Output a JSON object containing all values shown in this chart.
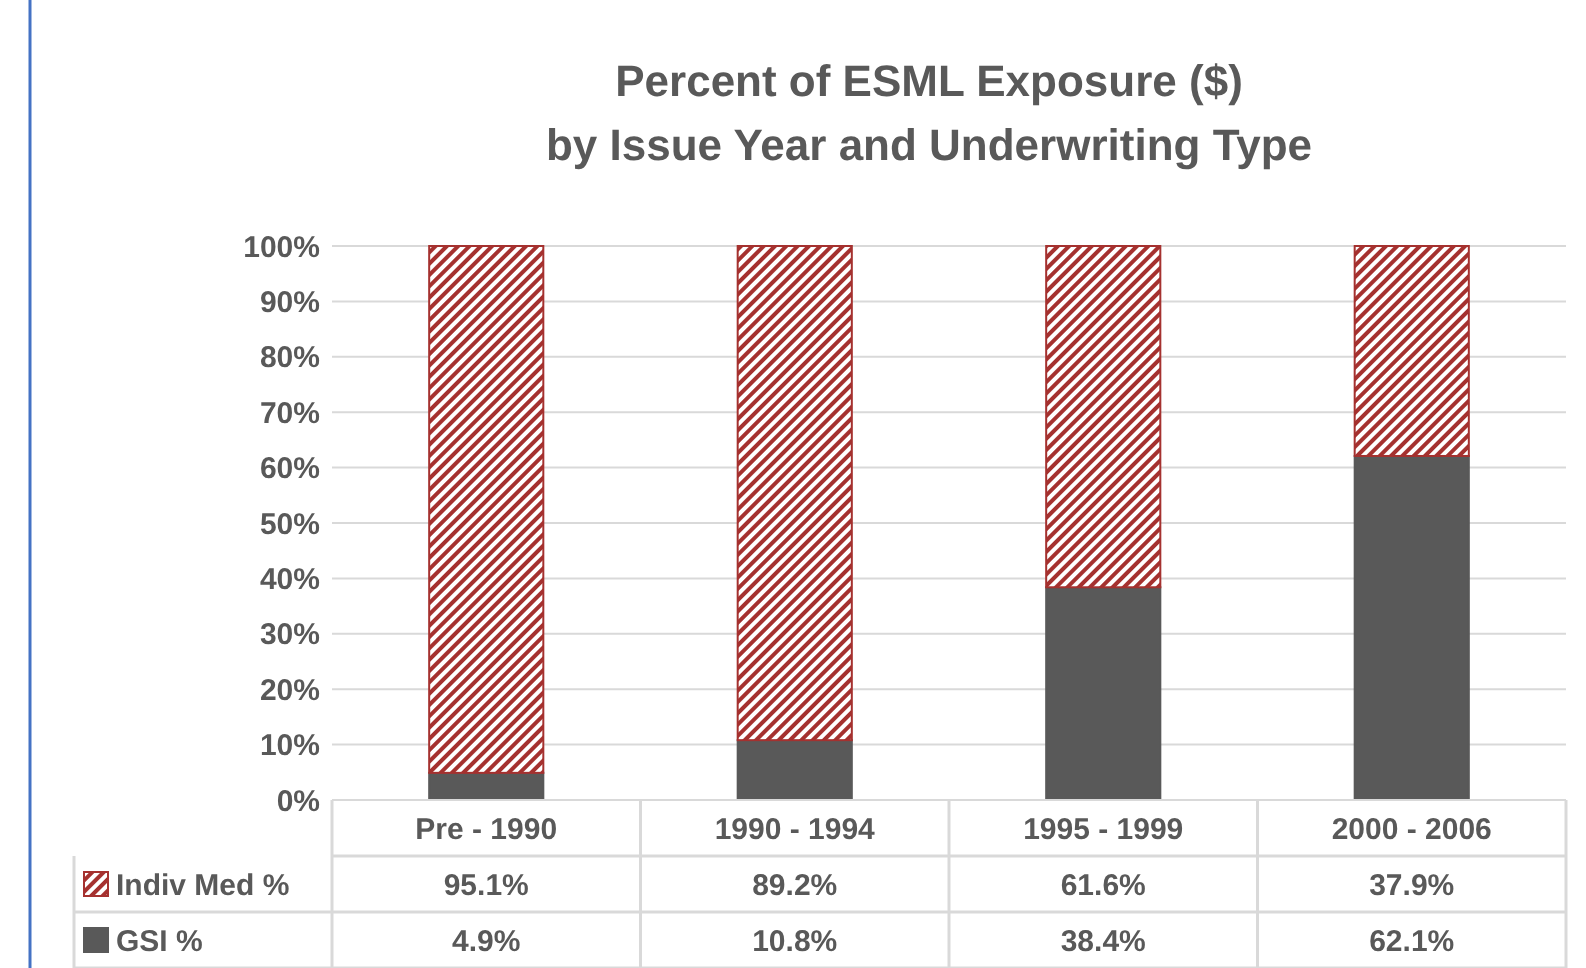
{
  "chart_data": {
    "type": "bar",
    "title": "Percent of ESML Exposure ($)\nby Issue Year and Underwriting Type",
    "categories": [
      "Pre - 1990",
      "1990 - 1994",
      "1995 - 1999",
      "2000 - 2006"
    ],
    "stacked": true,
    "series": [
      {
        "name": "GSI %",
        "color": "#595959",
        "values": [
          4.9,
          10.8,
          38.4,
          62.1
        ],
        "value_labels": [
          "4.9%",
          "10.8%",
          "38.4%",
          "62.1%"
        ]
      },
      {
        "name": "Indiv Med %",
        "color": "#a5312f",
        "values": [
          95.1,
          89.2,
          61.6,
          37.9
        ],
        "value_labels": [
          "95.1%",
          "89.2%",
          "61.6%",
          "37.9%"
        ]
      }
    ],
    "ylim": [
      0,
      100
    ],
    "yticks": [
      {
        "value": 0,
        "label": "0%"
      },
      {
        "value": 10,
        "label": "10%"
      },
      {
        "value": 20,
        "label": "20%"
      },
      {
        "value": 30,
        "label": "30%"
      },
      {
        "value": 40,
        "label": "40%"
      },
      {
        "value": 50,
        "label": "50%"
      },
      {
        "value": 60,
        "label": "60%"
      },
      {
        "value": 70,
        "label": "70%"
      },
      {
        "value": 80,
        "label": "80%"
      },
      {
        "value": 90,
        "label": "90%"
      },
      {
        "value": 100,
        "label": "100%"
      }
    ],
    "grid": "y",
    "legend": "bottom"
  }
}
